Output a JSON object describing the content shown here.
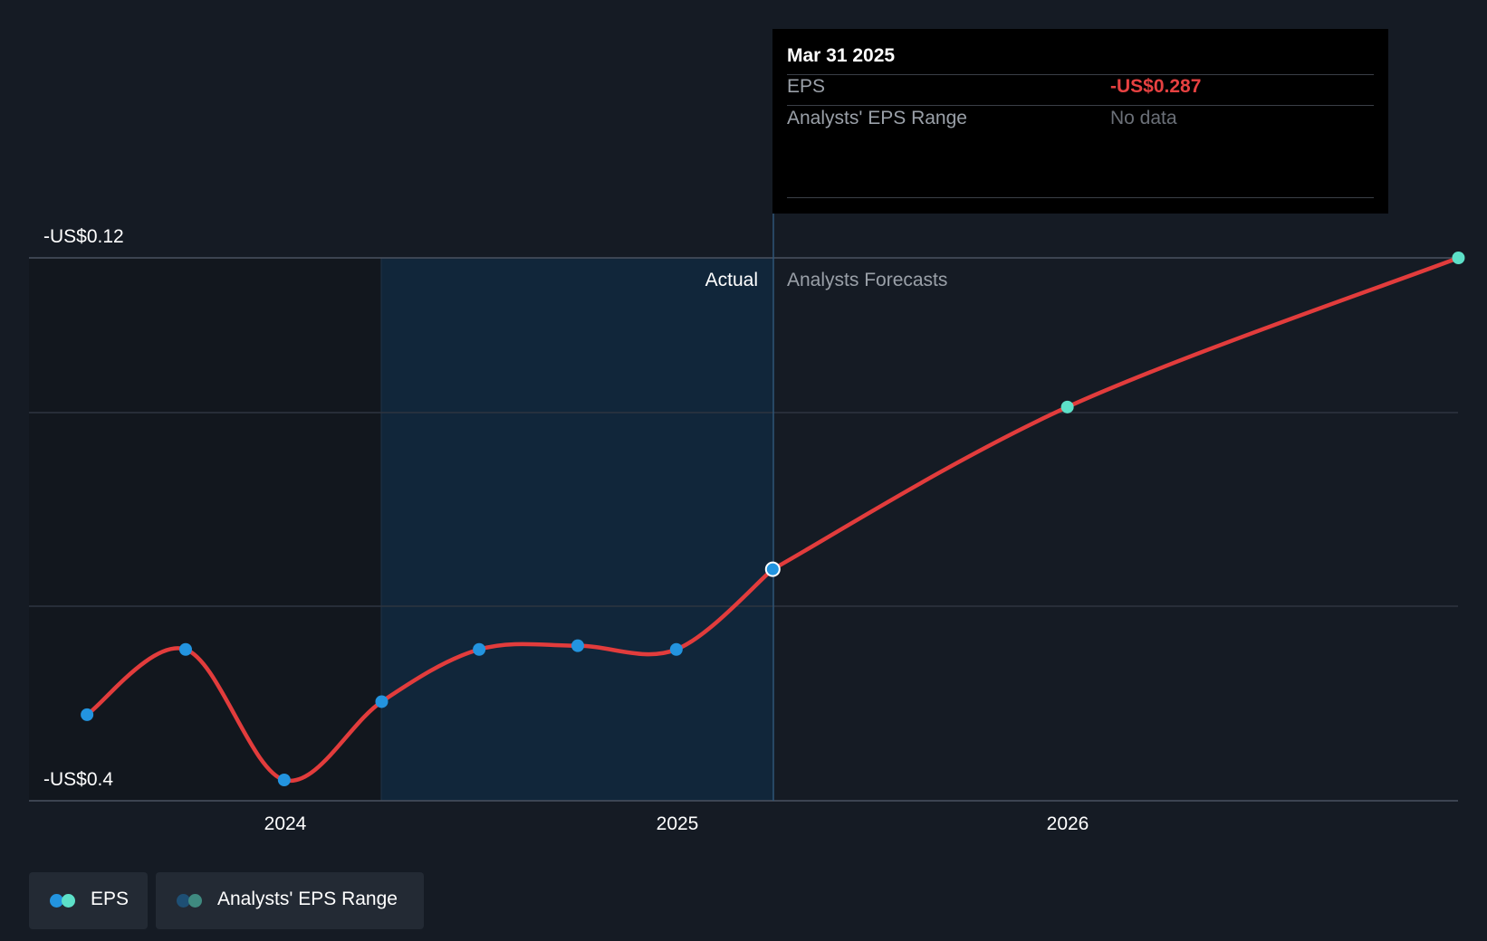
{
  "chart_data": {
    "type": "line",
    "y_axis": {
      "top_label": "-US$0.12",
      "bottom_label": "-US$0.4",
      "ylim": [
        -0.4,
        -0.12
      ]
    },
    "x_ticks": [
      "2024",
      "2025",
      "2026"
    ],
    "regions": {
      "actual_label": "Actual",
      "forecast_label": "Analysts Forecasts"
    },
    "series": [
      {
        "name": "EPS",
        "kind": "actual",
        "points": [
          {
            "date": "2023-06-30",
            "value": -0.365
          },
          {
            "date": "2023-09-30",
            "value": -0.33
          },
          {
            "date": "2023-12-31",
            "value": -0.4
          },
          {
            "date": "2024-03-31",
            "value": -0.358
          },
          {
            "date": "2024-06-30",
            "value": -0.33
          },
          {
            "date": "2024-09-30",
            "value": -0.328
          },
          {
            "date": "2024-12-31",
            "value": -0.33
          },
          {
            "date": "2025-03-31",
            "value": -0.287
          }
        ]
      },
      {
        "name": "EPS",
        "kind": "forecast",
        "points": [
          {
            "date": "2025-03-31",
            "value": -0.287
          },
          {
            "date": "2025-12-31",
            "value": -0.2
          },
          {
            "date": "2026-12-31",
            "value": -0.12
          }
        ]
      }
    ],
    "colors": {
      "line": "#e23c3c",
      "actual_point": "#2394df",
      "forecast_point": "#5de0c8",
      "actual_band": "#11263a",
      "grid": "#2e3540"
    }
  },
  "tooltip": {
    "date": "Mar 31 2025",
    "eps_label": "EPS",
    "eps_value": "-US$0.287",
    "range_label": "Analysts' EPS Range",
    "range_value": "No data"
  },
  "legend": {
    "eps_label": "EPS",
    "range_label": "Analysts' EPS Range"
  }
}
